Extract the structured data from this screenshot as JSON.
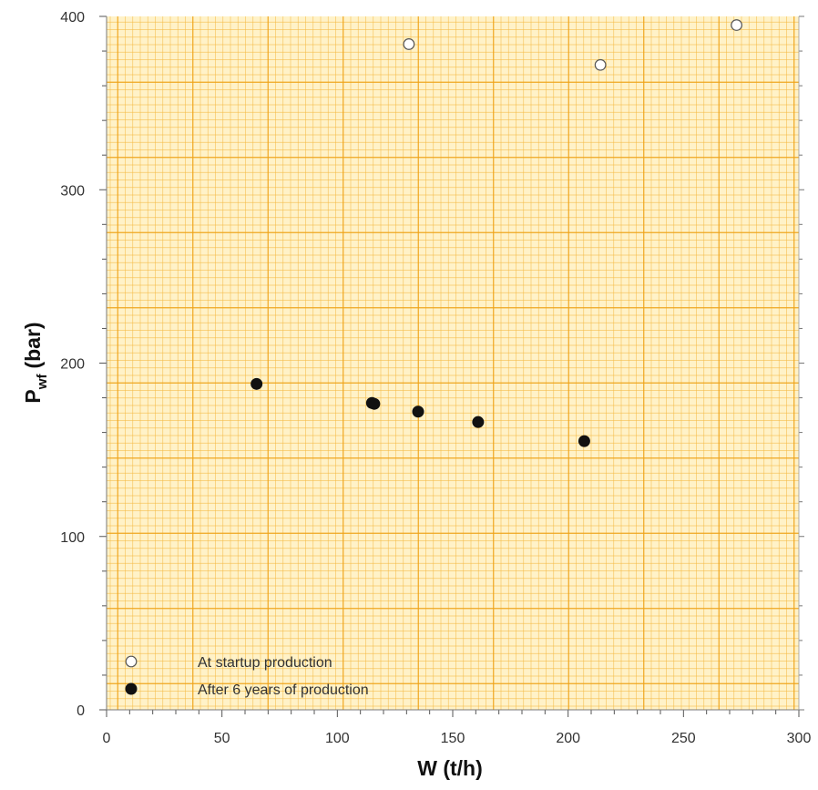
{
  "chart_data": {
    "type": "scatter",
    "title": "",
    "xlabel": "W (t/h)",
    "ylabel": {
      "main": "P",
      "subscript": "wf",
      "unit": "(bar)"
    },
    "xlim": [
      0,
      300
    ],
    "ylim": [
      0,
      400
    ],
    "xticks": [
      0,
      50,
      100,
      150,
      200,
      250,
      300
    ],
    "yticks": [
      0,
      100,
      200,
      300,
      400
    ],
    "grid": true,
    "grid_color": "#F5B942",
    "major_grid_color": "#EFA318",
    "background_color": "#FFF2C8",
    "legend_position": "bottom-left",
    "series": [
      {
        "name": "At startup production",
        "marker": "open-circle",
        "color": "#555555",
        "points": [
          {
            "x": 131,
            "y": 384
          },
          {
            "x": 214,
            "y": 372
          },
          {
            "x": 273,
            "y": 395
          }
        ]
      },
      {
        "name": "After 6 years of production",
        "marker": "filled-circle",
        "color": "#111111",
        "points": [
          {
            "x": 65,
            "y": 188
          },
          {
            "x": 115,
            "y": 177
          },
          {
            "x": 116,
            "y": 176.5
          },
          {
            "x": 135,
            "y": 172
          },
          {
            "x": 161,
            "y": 166
          },
          {
            "x": 207,
            "y": 155
          }
        ]
      }
    ]
  }
}
